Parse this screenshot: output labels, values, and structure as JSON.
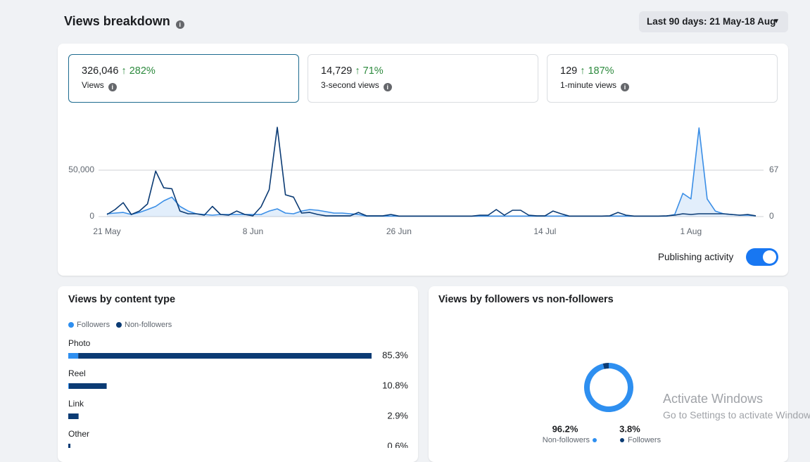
{
  "header": {
    "title": "Views breakdown",
    "date_range": "Last 90 days: 21 May-18 Aug"
  },
  "metrics": [
    {
      "value": "326,046",
      "change": "282%",
      "label": "Views"
    },
    {
      "value": "14,729",
      "change": "71%",
      "label": "3-second views"
    },
    {
      "value": "129",
      "change": "187%",
      "label": "1-minute views"
    }
  ],
  "views_chart": {
    "type": "line",
    "categories": [
      "21 May",
      null,
      null,
      null,
      null,
      null,
      null,
      null,
      null,
      null,
      null,
      null,
      null,
      null,
      null,
      null,
      null,
      null,
      "8 Jun",
      null,
      null,
      null,
      null,
      null,
      null,
      null,
      null,
      null,
      null,
      null,
      null,
      null,
      null,
      null,
      null,
      null,
      "26 Jun",
      null,
      null,
      null,
      null,
      null,
      null,
      null,
      null,
      null,
      null,
      null,
      null,
      null,
      null,
      null,
      null,
      null,
      "14 Jul",
      null,
      null,
      null,
      null,
      null,
      null,
      null,
      null,
      null,
      null,
      null,
      null,
      null,
      null,
      null,
      null,
      null,
      "1 Aug",
      null,
      null,
      null,
      null,
      null,
      null,
      null,
      null
    ],
    "series": [
      {
        "color": "#0b3b74",
        "values": [
          2300,
          7600,
          15000,
          2300,
          6000,
          13600,
          49000,
          31000,
          30000,
          6000,
          3000,
          3000,
          1500,
          11000,
          2300,
          1500,
          6000,
          2300,
          800,
          10600,
          29000,
          96200,
          23500,
          21000,
          3800,
          4500,
          2300,
          800,
          800,
          800,
          800,
          4500,
          800,
          800,
          800,
          2300,
          500,
          500,
          500,
          500,
          500,
          500,
          500,
          500,
          500,
          500,
          1500,
          1500,
          7600,
          1500,
          6800,
          6800,
          1500,
          800,
          800,
          6000,
          3000,
          500,
          500,
          500,
          500,
          500,
          800,
          4500,
          1500,
          500,
          500,
          500,
          500,
          800,
          1500,
          3000,
          2300,
          3000,
          3000,
          3000,
          3000,
          2300,
          1500,
          2300,
          800
        ]
      },
      {
        "color": "#3a8ee6",
        "fill": true,
        "values": [
          3000,
          3800,
          4500,
          2300,
          4500,
          7600,
          11000,
          17000,
          21000,
          11000,
          6000,
          3000,
          2300,
          1500,
          2300,
          2300,
          2300,
          2300,
          2300,
          2300,
          6000,
          8300,
          3800,
          3000,
          6000,
          7600,
          6800,
          5300,
          3800,
          3800,
          3000,
          2300,
          500,
          500,
          500,
          500,
          500,
          500,
          500,
          500,
          500,
          500,
          500,
          500,
          500,
          500,
          500,
          500,
          500,
          500,
          500,
          500,
          500,
          500,
          500,
          500,
          500,
          500,
          500,
          500,
          500,
          500,
          500,
          500,
          500,
          500,
          500,
          500,
          500,
          500,
          2300,
          25000,
          19000,
          95500,
          19000,
          6000,
          3000,
          2300,
          1500,
          1500,
          800
        ]
      }
    ],
    "ylim": [
      0,
      100000
    ],
    "yticks": [
      0,
      {
        "value": 50000,
        "label": "50,000"
      }
    ],
    "y2lim": [
      0,
      134
    ],
    "y2ticks": [
      0,
      67
    ],
    "grid": true
  },
  "publishing_activity": {
    "label": "Publishing activity",
    "enabled": true
  },
  "content_type": {
    "title": "Views by content type",
    "type": "bar",
    "stacked": true,
    "categories": [
      "Photo",
      "Reel",
      "Link",
      "Other"
    ],
    "series": [
      {
        "name": "Followers",
        "color": "#2e8ff0",
        "values": [
          2.8,
          0.2,
          0,
          0
        ]
      },
      {
        "name": "Non-followers",
        "color": "#0b3b74",
        "values": [
          82.5,
          10.6,
          2.9,
          0.6
        ]
      }
    ],
    "totals": [
      85.3,
      10.8,
      2.9,
      0.6
    ],
    "total_labels": [
      "85.3%",
      "10.8%",
      "2.9%",
      "0.6%"
    ]
  },
  "followers_split": {
    "title": "Views by followers vs non-followers",
    "type": "pie",
    "categories": [
      "Non-followers",
      "Followers"
    ],
    "values": [
      96.2,
      3.8
    ],
    "value_labels": [
      "96.2%",
      "3.8%"
    ],
    "colors": [
      "#2e8ff0",
      "#0b3b74"
    ]
  },
  "watermark": {
    "title": "Activate Windows",
    "subtitle": "Go to Settings to activate Windows."
  }
}
